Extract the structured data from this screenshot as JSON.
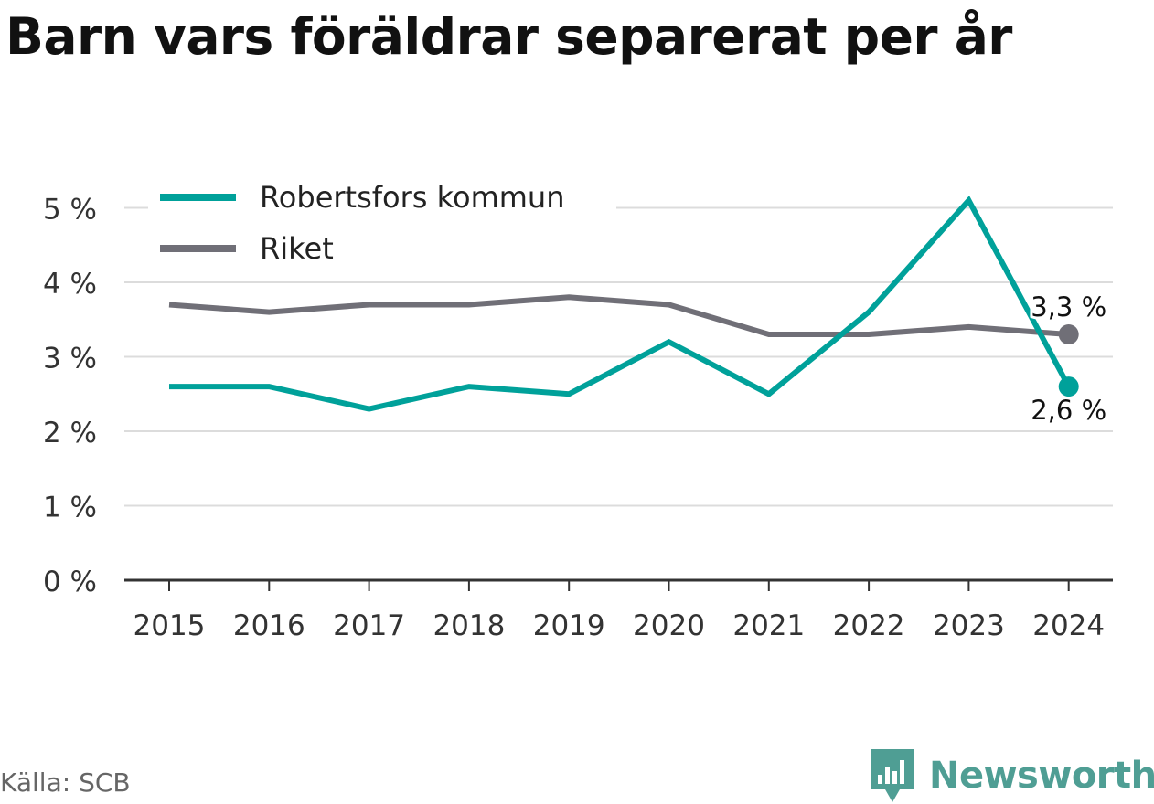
{
  "title": "Barn vars föräldrar separerat per år",
  "source": "Källa: SCB",
  "brand": {
    "name": "Newsworthy",
    "icon": "newsworthy-logo-icon",
    "color": "#4f9e94"
  },
  "chart_data": {
    "type": "line",
    "title": "Barn vars föräldrar separerat per år",
    "xlabel": "",
    "ylabel": "",
    "x": [
      "2015",
      "2016",
      "2017",
      "2018",
      "2019",
      "2020",
      "2021",
      "2022",
      "2023",
      "2024"
    ],
    "ylim": [
      0,
      5
    ],
    "yticks": [
      0,
      1,
      2,
      3,
      4,
      5
    ],
    "ytick_labels": [
      "0 %",
      "1 %",
      "2 %",
      "3 %",
      "4 %",
      "5 %"
    ],
    "grid": true,
    "legend": "top-left",
    "series": [
      {
        "name": "Robertsfors kommun",
        "color": "#00a19a",
        "values": [
          2.6,
          2.6,
          2.3,
          2.6,
          2.5,
          3.2,
          2.5,
          3.6,
          5.1,
          2.6
        ],
        "end_label": "2,6 %"
      },
      {
        "name": "Riket",
        "color": "#706f77",
        "values": [
          3.7,
          3.6,
          3.7,
          3.7,
          3.8,
          3.7,
          3.3,
          3.3,
          3.4,
          3.3
        ],
        "end_label": "3,3 %"
      }
    ]
  }
}
